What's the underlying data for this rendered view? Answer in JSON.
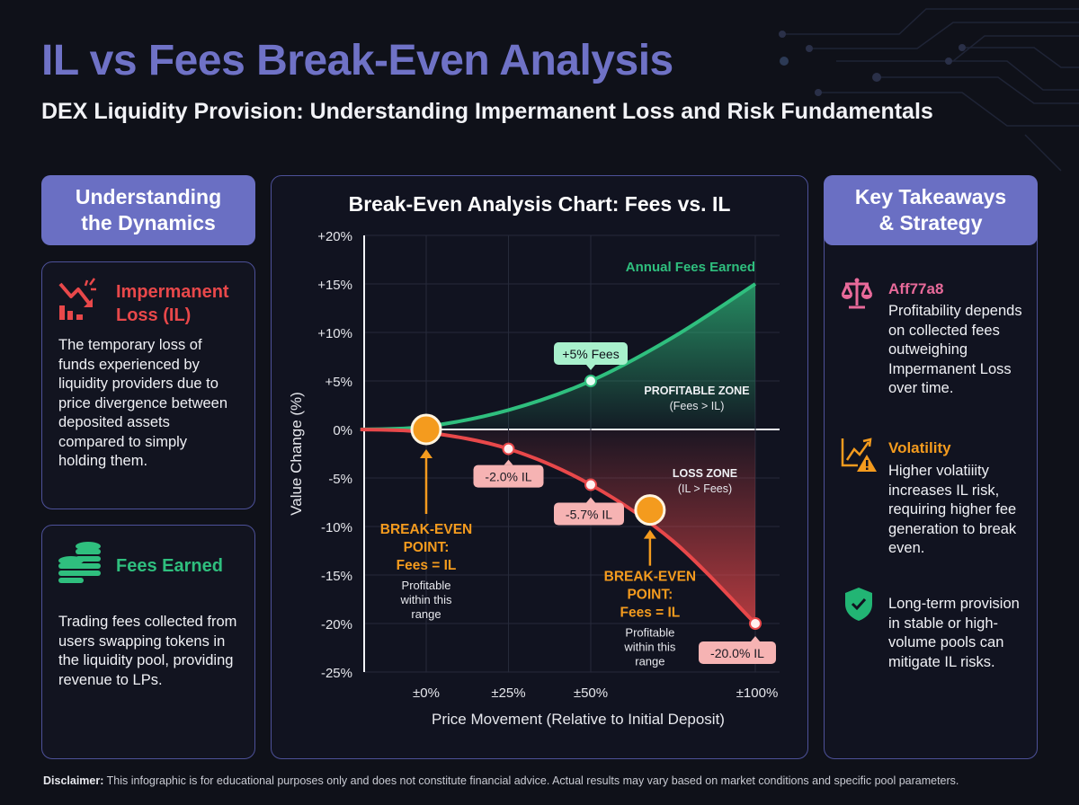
{
  "header": {
    "title": "IL vs Fees Break-Even Analysis",
    "subtitle": "DEX Liquidity Provision: Understanding Impermanent Loss and Risk Fundamentals"
  },
  "left": {
    "header": "Understanding the Dynamics",
    "header_line1": "Understanding",
    "header_line2": "the Dynamics",
    "il_card": {
      "icon": "chart-down-icon",
      "title_line1": "Impermanent",
      "title_line2": "Loss (IL)",
      "text": "The temporary loss of funds experienced by liquidity providers due to price divergence between deposited assets compared to simply holding them."
    },
    "fees_card": {
      "icon": "coins-icon",
      "title": "Fees Earned",
      "text": "Trading fees collected from users swapping tokens in the liquidity pool, providing revenue to LPs."
    }
  },
  "right": {
    "header_line1": "Key Takeaways",
    "header_line2": "& Strategy",
    "items": [
      {
        "icon": "scale-icon",
        "title": "Aff77a8",
        "text": "Profitability depends on collected fees outweighing Impermanent Loss over time."
      },
      {
        "icon": "volatility-warning-icon",
        "title": "Volatility",
        "text": "Higher volatiiity increases IL risk, requiring higher fee generation to break even."
      },
      {
        "icon": "shield-check-icon",
        "title": "",
        "text": "Long-term provision in stable or high-volume pools can mitigate IL risks."
      }
    ]
  },
  "colors": {
    "accent": "#6a6fc3",
    "fees": "#2fbf7e",
    "il": "#e8484a",
    "breakeven": "#f49b1e",
    "scale": "#e86a9a"
  },
  "chart_data": {
    "type": "line",
    "title": "Break-Even Analysis Chart: Fees vs. IL",
    "xlabel": "Price Movement (Relative to Initial Deposit)",
    "ylabel": "Value Change (%)",
    "ylim": [
      -25,
      20
    ],
    "xlim": [
      -20,
      115
    ],
    "grid": true,
    "y_ticks": [
      "+20%",
      "+15%",
      "+10%",
      "+5%",
      "0%",
      "-5%",
      "-10%",
      "-15%",
      "-20%",
      "-25%"
    ],
    "y_tick_values": [
      20,
      15,
      10,
      5,
      0,
      -5,
      -10,
      -15,
      -20,
      -25
    ],
    "x_ticks": [
      "±0%",
      "±25%",
      "±50%",
      "±100%"
    ],
    "x_tick_values": [
      0,
      25,
      50,
      100
    ],
    "series": [
      {
        "name": "Annual Fees Earned",
        "x": [
          -20,
          0,
          25,
          50,
          75,
          100
        ],
        "y": [
          0,
          0.3,
          2.0,
          5.0,
          9.5,
          15.0
        ]
      },
      {
        "name": "Impermanent Loss",
        "x": [
          -20,
          0,
          25,
          50,
          75,
          100
        ],
        "y": [
          0,
          -0.3,
          -2.0,
          -5.7,
          -11.5,
          -20.0
        ]
      }
    ],
    "annotations": {
      "fees_label": "Annual Fees Earned",
      "fees_point": {
        "x": 50,
        "y": 5,
        "label": "+5% Fees"
      },
      "il_points": [
        {
          "x": 25,
          "y": -2.0,
          "label": "-2.0% IL"
        },
        {
          "x": 50,
          "y": -5.7,
          "label": "-5.7% IL"
        },
        {
          "x": 100,
          "y": -20.0,
          "label": "-20.0% IL"
        }
      ],
      "profit_zone": {
        "title": "PROFITABLE ZONE",
        "sub": "(Fees > IL)"
      },
      "loss_zone": {
        "title": "LOSS ZONE",
        "sub": "(IL > Fees)"
      },
      "breakeven_points": [
        {
          "x": 0,
          "y": 0,
          "l1": "BREAK-EVEN",
          "l2": "POINT:",
          "l3": "Fees = IL",
          "s1": "Profitable",
          "s2": "within this",
          "s3": "range"
        },
        {
          "x": 68,
          "y": -8.3,
          "l1": "BREAK-EVEN",
          "l2": "POINT:",
          "l3": "Fees = IL",
          "s1": "Profitable",
          "s2": "within this",
          "s3": "range"
        }
      ]
    }
  },
  "disclaimer": {
    "label": "Disclaimer:",
    "text": " This infographic is for educational purposes only and does not constitute financial advice. Actual results may vary based on market conditions and specific pool parameters."
  }
}
